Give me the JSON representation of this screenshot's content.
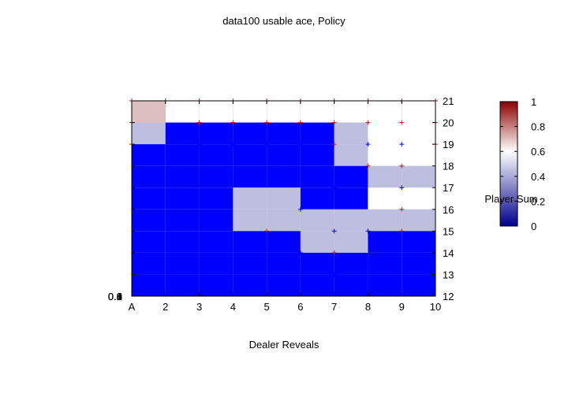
{
  "chart_data": {
    "type": "heatmap",
    "title": "data100 usable ace, Policy",
    "xlabel": "Dealer Reveals",
    "ylabel": "Player Sum",
    "x_tick_labels": [
      "A",
      "2",
      "3",
      "4",
      "5",
      "6",
      "7",
      "8",
      "9",
      "10"
    ],
    "x": [
      1,
      2,
      3,
      4,
      5,
      6,
      7,
      8,
      9,
      10
    ],
    "y": [
      12,
      13,
      14,
      15,
      16,
      17,
      18,
      19,
      20,
      21
    ],
    "y_tick_labels": [
      "12",
      "13",
      "14",
      "15",
      "16",
      "17",
      "18",
      "19",
      "20",
      "21"
    ],
    "xlim": [
      1,
      10
    ],
    "ylim": [
      12,
      21
    ],
    "left_axis_labels": [
      "0",
      "0.2",
      "0.4",
      "0.6",
      "0.8",
      "1"
    ],
    "colorbar": {
      "range": [
        0,
        1
      ],
      "tick_labels": [
        "0",
        "0.2",
        "0.4",
        "0.6",
        "0.8",
        "1"
      ],
      "colors": [
        "#00008b",
        "#ffffff",
        "#8b0000"
      ]
    },
    "cells": [
      {
        "y": 21,
        "values": [
          1,
          1,
          1,
          1,
          1,
          1,
          1,
          1,
          1,
          1
        ]
      },
      {
        "y": 20,
        "values": [
          0.75,
          0.6,
          0.6,
          0.6,
          0.6,
          0.6,
          0.6,
          0.6,
          0.6,
          0.75
        ]
      },
      {
        "y": 19,
        "values": [
          0.25,
          0,
          0,
          0,
          0,
          0,
          0.25,
          0.6,
          0.6,
          0.75
        ]
      },
      {
        "y": 18,
        "values": [
          0,
          0,
          0,
          0,
          0,
          0,
          0.25,
          0.6,
          0.6,
          0.6
        ]
      },
      {
        "y": 17,
        "values": [
          0,
          0,
          0,
          0,
          0,
          0,
          0,
          0.25,
          0.25,
          0.25
        ]
      },
      {
        "y": 16,
        "values": [
          0,
          0,
          0,
          0.25,
          0.25,
          0,
          0,
          0.6,
          0.6,
          0.75
        ]
      },
      {
        "y": 15,
        "values": [
          0,
          0,
          0,
          0.25,
          0.25,
          0.25,
          0.25,
          0.25,
          0.25,
          0.75
        ]
      },
      {
        "y": 14,
        "values": [
          0,
          0,
          0,
          0,
          0,
          0.25,
          0.25,
          0,
          0,
          0.25
        ]
      },
      {
        "y": 13,
        "values": [
          0,
          0,
          0,
          0,
          0,
          0,
          0,
          0,
          0,
          0
        ]
      },
      {
        "y": 12,
        "values": [
          0,
          0,
          0,
          0,
          0,
          0,
          0,
          0,
          0,
          0
        ]
      }
    ],
    "points_stand": [
      [
        1,
        21
      ],
      [
        2,
        21
      ],
      [
        3,
        21
      ],
      [
        4,
        21
      ],
      [
        5,
        21
      ],
      [
        6,
        21
      ],
      [
        7,
        21
      ],
      [
        8,
        21
      ],
      [
        9,
        21
      ],
      [
        10,
        21
      ],
      [
        1,
        20
      ],
      [
        3,
        20
      ],
      [
        4,
        20
      ],
      [
        5,
        20
      ],
      [
        6,
        20
      ],
      [
        7,
        20
      ],
      [
        8,
        20
      ],
      [
        9,
        20
      ],
      [
        10,
        20
      ],
      [
        1,
        19
      ],
      [
        7,
        19
      ],
      [
        10,
        19
      ],
      [
        8,
        18
      ],
      [
        9,
        18
      ],
      [
        9,
        16
      ],
      [
        5,
        15
      ],
      [
        9,
        15
      ],
      [
        7,
        14
      ]
    ],
    "points_hit": [
      [
        3,
        19
      ],
      [
        4,
        19
      ],
      [
        5,
        19
      ],
      [
        6,
        19
      ],
      [
        8,
        19
      ],
      [
        9,
        19
      ],
      [
        7,
        17
      ],
      [
        9,
        17
      ],
      [
        6,
        16
      ],
      [
        7,
        15
      ],
      [
        8,
        15
      ],
      [
        6,
        14
      ],
      [
        7,
        13
      ]
    ],
    "colors": {
      "stand_marker": "#b22222",
      "hit_marker": "#0000ff"
    }
  }
}
